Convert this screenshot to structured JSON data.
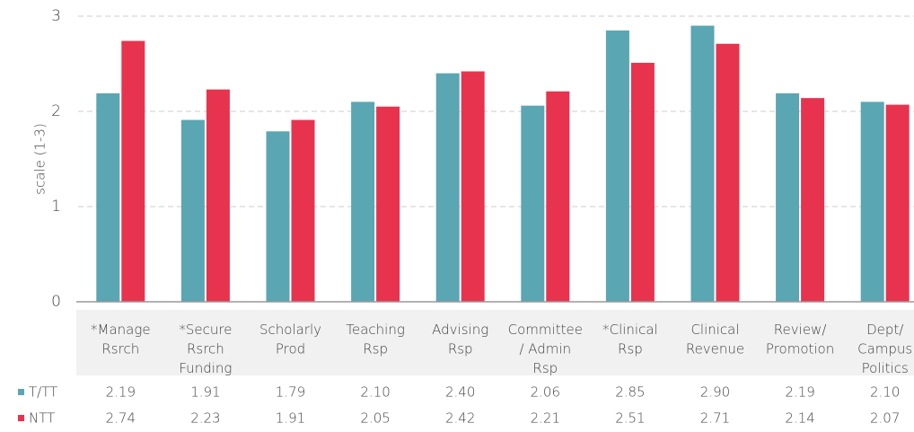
{
  "chart_data": {
    "type": "bar",
    "ylabel": "scale (1-3)",
    "categories": [
      "*Manage\nRsrch",
      "*Secure\nRsrch\nFunding",
      "Scholarly\nProd",
      "Teaching\nRsp",
      "Advising\nRsp",
      "Committee\n/ Admin\nRsp",
      "*Clinical\nRsp",
      "Clinical\nRevenue",
      "Review/\nPromotion",
      "Dept/\nCampus\nPolitics"
    ],
    "series": [
      {
        "name": "T/TT",
        "color": "#5aa6b3",
        "values": [
          2.19,
          1.91,
          1.79,
          2.1,
          2.4,
          2.06,
          2.85,
          2.9,
          2.19,
          2.1
        ],
        "value_labels": [
          "2.19",
          "1.91",
          "1.79",
          "2.10",
          "2.40",
          "2.06",
          "2.85",
          "2.90",
          "2.19",
          "2.10"
        ]
      },
      {
        "name": "NTT",
        "color": "#e8334e",
        "values": [
          2.74,
          2.23,
          1.91,
          2.05,
          2.42,
          2.21,
          2.51,
          2.71,
          2.14,
          2.07
        ],
        "value_labels": [
          "2.74",
          "2.23",
          "1.91",
          "2.05",
          "2.42",
          "2.21",
          "2.51",
          "2.71",
          "2.14",
          "2.07"
        ]
      }
    ],
    "ylim": [
      0,
      3
    ],
    "yticks": [
      0,
      1,
      2,
      3
    ],
    "grid": true
  }
}
